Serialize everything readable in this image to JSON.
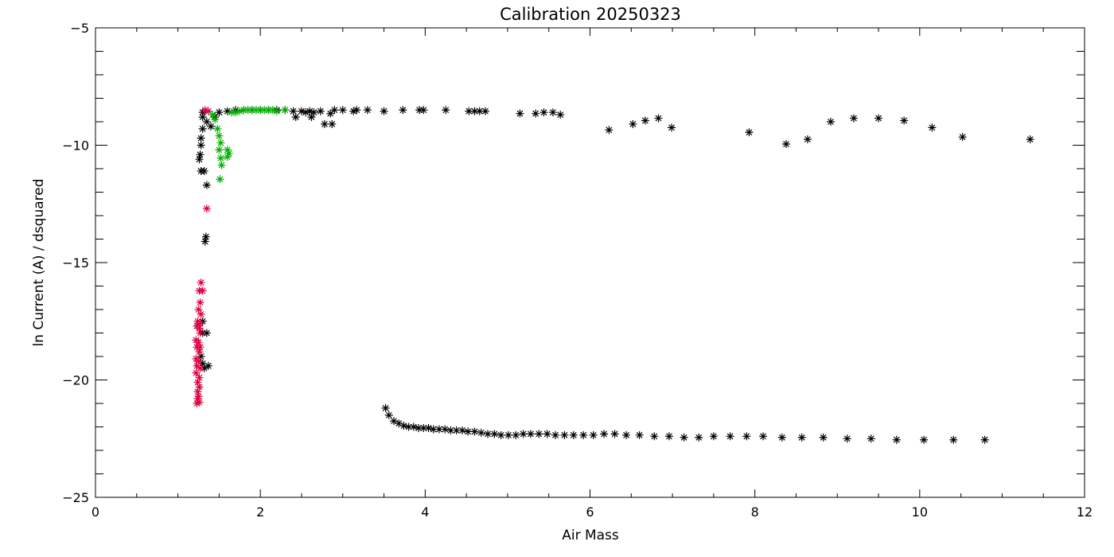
{
  "chart_data": {
    "type": "scatter",
    "title": "Calibration 20250323",
    "xlabel": "Air Mass",
    "ylabel": "ln Current (A) / dsquared",
    "xlim": [
      0,
      12
    ],
    "ylim": [
      -25,
      -5
    ],
    "x_ticks": [
      0,
      2,
      4,
      6,
      8,
      10,
      12
    ],
    "x_tick_labels": [
      "0",
      "2",
      "4",
      "6",
      "8",
      "10",
      "12"
    ],
    "y_ticks": [
      -25,
      -20,
      -15,
      -10,
      -5
    ],
    "y_tick_labels": [
      "−25",
      "−20",
      "−15",
      "−10",
      "−5"
    ],
    "x_minor_step": 0.5,
    "y_minor_step": 1,
    "grid": false,
    "legend": "none",
    "marker": "asterisk",
    "series": [
      {
        "color": "#000000",
        "points": [
          [
            1.26,
            -10.6
          ],
          [
            1.27,
            -10.4
          ],
          [
            1.28,
            -10.0
          ],
          [
            1.28,
            -9.7
          ],
          [
            1.3,
            -9.3
          ],
          [
            1.3,
            -8.8
          ],
          [
            1.3,
            -8.6
          ],
          [
            1.28,
            -11.1
          ],
          [
            1.32,
            -11.1
          ],
          [
            1.35,
            -11.7
          ],
          [
            1.34,
            -13.9
          ],
          [
            1.33,
            -14.1
          ],
          [
            1.3,
            -17.5
          ],
          [
            1.3,
            -18.0
          ],
          [
            1.35,
            -18.0
          ],
          [
            1.37,
            -19.4
          ],
          [
            1.32,
            -19.5
          ],
          [
            1.3,
            -19.3
          ],
          [
            1.28,
            -19.0
          ],
          [
            1.35,
            -9.0
          ],
          [
            1.4,
            -9.2
          ],
          [
            1.45,
            -8.8
          ],
          [
            1.5,
            -8.6
          ],
          [
            1.6,
            -8.55
          ],
          [
            1.7,
            -8.5
          ],
          [
            1.8,
            -8.5
          ],
          [
            1.9,
            -8.5
          ],
          [
            2.0,
            -8.5
          ],
          [
            2.1,
            -8.5
          ],
          [
            2.2,
            -8.5
          ],
          [
            2.3,
            -8.5
          ],
          [
            2.4,
            -8.55
          ],
          [
            2.43,
            -8.8
          ],
          [
            2.5,
            -8.55
          ],
          [
            2.55,
            -8.6
          ],
          [
            2.6,
            -8.55
          ],
          [
            2.62,
            -8.8
          ],
          [
            2.65,
            -8.6
          ],
          [
            2.73,
            -8.55
          ],
          [
            2.78,
            -9.1
          ],
          [
            2.87,
            -9.1
          ],
          [
            2.85,
            -8.65
          ],
          [
            2.9,
            -8.5
          ],
          [
            3.0,
            -8.5
          ],
          [
            3.13,
            -8.55
          ],
          [
            3.17,
            -8.5
          ],
          [
            3.3,
            -8.5
          ],
          [
            3.5,
            -8.55
          ],
          [
            3.73,
            -8.5
          ],
          [
            3.93,
            -8.5
          ],
          [
            3.98,
            -8.5
          ],
          [
            4.25,
            -8.5
          ],
          [
            4.53,
            -8.55
          ],
          [
            4.6,
            -8.55
          ],
          [
            4.66,
            -8.55
          ],
          [
            4.73,
            -8.55
          ],
          [
            5.15,
            -8.65
          ],
          [
            5.34,
            -8.65
          ],
          [
            5.44,
            -8.6
          ],
          [
            5.55,
            -8.6
          ],
          [
            5.64,
            -8.7
          ],
          [
            6.23,
            -9.35
          ],
          [
            6.52,
            -9.1
          ],
          [
            6.67,
            -8.95
          ],
          [
            6.83,
            -8.85
          ],
          [
            6.99,
            -9.25
          ],
          [
            7.93,
            -9.45
          ],
          [
            8.38,
            -9.95
          ],
          [
            8.64,
            -9.75
          ],
          [
            8.92,
            -9.0
          ],
          [
            9.2,
            -8.85
          ],
          [
            9.5,
            -8.85
          ],
          [
            9.81,
            -8.95
          ],
          [
            10.15,
            -9.25
          ],
          [
            10.52,
            -9.65
          ],
          [
            11.34,
            -9.75
          ],
          [
            3.52,
            -21.2
          ],
          [
            3.56,
            -21.5
          ],
          [
            3.62,
            -21.75
          ],
          [
            3.68,
            -21.85
          ],
          [
            3.74,
            -21.95
          ],
          [
            3.8,
            -22.0
          ],
          [
            3.86,
            -22.0
          ],
          [
            3.92,
            -22.05
          ],
          [
            3.98,
            -22.05
          ],
          [
            4.04,
            -22.05
          ],
          [
            4.1,
            -22.1
          ],
          [
            4.17,
            -22.1
          ],
          [
            4.24,
            -22.1
          ],
          [
            4.31,
            -22.15
          ],
          [
            4.38,
            -22.15
          ],
          [
            4.45,
            -22.15
          ],
          [
            4.52,
            -22.2
          ],
          [
            4.6,
            -22.2
          ],
          [
            4.68,
            -22.25
          ],
          [
            4.76,
            -22.3
          ],
          [
            4.84,
            -22.3
          ],
          [
            4.92,
            -22.35
          ],
          [
            5.01,
            -22.35
          ],
          [
            5.1,
            -22.35
          ],
          [
            5.19,
            -22.3
          ],
          [
            5.28,
            -22.3
          ],
          [
            5.38,
            -22.3
          ],
          [
            5.48,
            -22.3
          ],
          [
            5.58,
            -22.35
          ],
          [
            5.69,
            -22.35
          ],
          [
            5.8,
            -22.35
          ],
          [
            5.92,
            -22.35
          ],
          [
            6.04,
            -22.35
          ],
          [
            6.17,
            -22.3
          ],
          [
            6.3,
            -22.3
          ],
          [
            6.44,
            -22.35
          ],
          [
            6.6,
            -22.35
          ],
          [
            6.78,
            -22.4
          ],
          [
            6.96,
            -22.4
          ],
          [
            7.14,
            -22.45
          ],
          [
            7.32,
            -22.45
          ],
          [
            7.5,
            -22.4
          ],
          [
            7.7,
            -22.4
          ],
          [
            7.9,
            -22.4
          ],
          [
            8.1,
            -22.4
          ],
          [
            8.33,
            -22.45
          ],
          [
            8.57,
            -22.45
          ],
          [
            8.83,
            -22.45
          ],
          [
            9.12,
            -22.5
          ],
          [
            9.41,
            -22.5
          ],
          [
            9.72,
            -22.55
          ],
          [
            10.05,
            -22.55
          ],
          [
            10.41,
            -22.55
          ],
          [
            10.79,
            -22.55
          ]
        ]
      },
      {
        "color": "#dc0040",
        "points": [
          [
            1.33,
            -8.5
          ],
          [
            1.37,
            -8.55
          ],
          [
            1.35,
            -12.7
          ],
          [
            1.28,
            -15.85
          ],
          [
            1.26,
            -16.2
          ],
          [
            1.3,
            -16.2
          ],
          [
            1.27,
            -16.7
          ],
          [
            1.25,
            -17.0
          ],
          [
            1.28,
            -17.2
          ],
          [
            1.24,
            -17.5
          ],
          [
            1.27,
            -17.6
          ],
          [
            1.23,
            -17.7
          ],
          [
            1.26,
            -17.8
          ],
          [
            1.27,
            -18.0
          ],
          [
            1.22,
            -18.3
          ],
          [
            1.25,
            -18.4
          ],
          [
            1.23,
            -18.6
          ],
          [
            1.27,
            -18.6
          ],
          [
            1.26,
            -18.8
          ],
          [
            1.22,
            -19.1
          ],
          [
            1.25,
            -19.2
          ],
          [
            1.23,
            -19.4
          ],
          [
            1.27,
            -19.5
          ],
          [
            1.22,
            -19.7
          ],
          [
            1.26,
            -19.9
          ],
          [
            1.24,
            -20.1
          ],
          [
            1.26,
            -20.3
          ],
          [
            1.24,
            -20.5
          ],
          [
            1.25,
            -20.7
          ],
          [
            1.24,
            -20.8
          ],
          [
            1.23,
            -21.0
          ],
          [
            1.26,
            -20.95
          ]
        ]
      },
      {
        "color": "#00b000",
        "points": [
          [
            1.42,
            -8.7
          ],
          [
            1.45,
            -8.9
          ],
          [
            1.48,
            -9.3
          ],
          [
            1.5,
            -9.6
          ],
          [
            1.52,
            -9.9
          ],
          [
            1.5,
            -10.2
          ],
          [
            1.52,
            -10.55
          ],
          [
            1.53,
            -10.85
          ],
          [
            1.51,
            -11.45
          ],
          [
            1.6,
            -10.2
          ],
          [
            1.62,
            -10.35
          ],
          [
            1.6,
            -10.5
          ],
          [
            1.65,
            -8.6
          ],
          [
            1.7,
            -8.6
          ],
          [
            1.75,
            -8.55
          ],
          [
            1.8,
            -8.5
          ],
          [
            1.85,
            -8.5
          ],
          [
            1.9,
            -8.5
          ],
          [
            1.95,
            -8.5
          ],
          [
            2.0,
            -8.5
          ],
          [
            2.05,
            -8.5
          ],
          [
            2.1,
            -8.5
          ],
          [
            2.15,
            -8.5
          ],
          [
            2.2,
            -8.55
          ],
          [
            2.3,
            -8.5
          ]
        ]
      }
    ]
  }
}
